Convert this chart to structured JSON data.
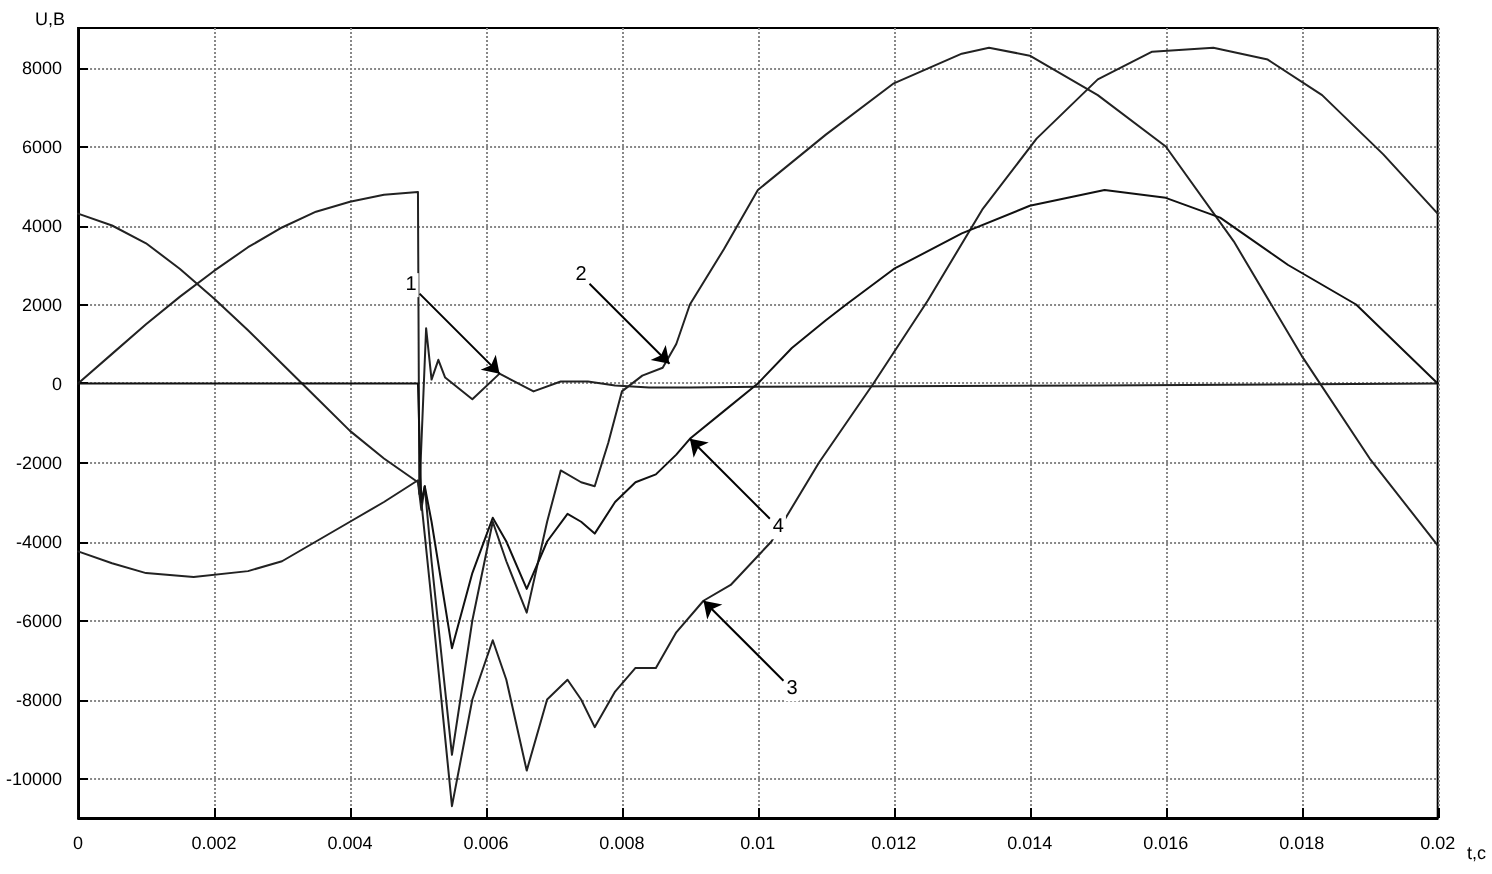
{
  "chart_data": {
    "type": "line",
    "xlabel": "t,c",
    "ylabel": "U,B",
    "xlim": [
      0,
      0.02
    ],
    "ylim": [
      -11000,
      9000
    ],
    "xticks": [
      0,
      0.002,
      0.004,
      0.006,
      0.008,
      0.01,
      0.012,
      0.014,
      0.016,
      0.018,
      0.02
    ],
    "yticks": [
      -10000,
      -8000,
      -6000,
      -4000,
      -2000,
      0,
      2000,
      4000,
      6000,
      8000
    ],
    "grid": true,
    "marker": "none",
    "line_style": "solid",
    "series": [
      {
        "color": "#222222",
        "x": [
          0,
          0.0005,
          0.001,
          0.0015,
          0.002,
          0.0025,
          0.003,
          0.0035,
          0.004,
          0.0045,
          0.005,
          0.00502,
          0.00512,
          0.0052,
          0.0053,
          0.0054,
          0.0058,
          0.0062,
          0.0067,
          0.0071,
          0.0075,
          0.0079,
          0.0084,
          0.009,
          0.01,
          0.015,
          0.02
        ],
        "values": [
          0,
          750,
          1500,
          2200,
          2850,
          3450,
          3950,
          4350,
          4600,
          4780,
          4850,
          -2800,
          1400,
          100,
          600,
          150,
          -400,
          250,
          -200,
          50,
          50,
          -50,
          -100,
          -100,
          -80,
          -50,
          0
        ]
      },
      {
        "color": "#222222",
        "x": [
          0,
          0.0005,
          0.001,
          0.0015,
          0.002,
          0.0025,
          0.003,
          0.0035,
          0.004,
          0.0045,
          0.005,
          0.00505,
          0.0051,
          0.0052,
          0.0055,
          0.0058,
          0.0061,
          0.0063,
          0.0066,
          0.0069,
          0.0071,
          0.0074,
          0.0076,
          0.0078,
          0.008,
          0.0083,
          0.0086,
          0.0088,
          0.009,
          0.0095,
          0.01,
          0.011,
          0.012,
          0.013,
          0.0134,
          0.014,
          0.015,
          0.016,
          0.017,
          0.018,
          0.019,
          0.02
        ],
        "values": [
          4300,
          4000,
          3550,
          2900,
          2150,
          1350,
          500,
          -350,
          -1200,
          -1900,
          -2500,
          -3200,
          -2600,
          -4500,
          -9400,
          -6000,
          -3500,
          -4500,
          -5800,
          -3500,
          -2200,
          -2500,
          -2600,
          -1500,
          -200,
          200,
          400,
          1000,
          2000,
          3400,
          4900,
          6300,
          7600,
          8350,
          8500,
          8300,
          7300,
          6000,
          3600,
          700,
          -1900,
          -4100
        ]
      },
      {
        "color": "#222222",
        "x": [
          0,
          0.0005,
          0.001,
          0.0017,
          0.0025,
          0.003,
          0.0035,
          0.004,
          0.0045,
          0.005,
          0.00505,
          0.0052,
          0.0055,
          0.0058,
          0.0061,
          0.0063,
          0.0066,
          0.0069,
          0.0072,
          0.0074,
          0.0076,
          0.0079,
          0.0082,
          0.0085,
          0.0088,
          0.0092,
          0.0096,
          0.0102,
          0.0109,
          0.0117,
          0.0125,
          0.0133,
          0.0141,
          0.015,
          0.0158,
          0.0167,
          0.0175,
          0.0183,
          0.0192,
          0.02
        ],
        "values": [
          -4250,
          -4550,
          -4800,
          -4900,
          -4750,
          -4500,
          -4000,
          -3500,
          -3000,
          -2450,
          -3000,
          -5500,
          -10700,
          -8000,
          -6500,
          -7500,
          -9800,
          -8000,
          -7500,
          -8000,
          -8700,
          -7800,
          -7200,
          -7200,
          -6300,
          -5500,
          -5100,
          -4000,
          -2000,
          0,
          2100,
          4400,
          6200,
          7700,
          8400,
          8500,
          8200,
          7300,
          5800,
          4300
        ]
      },
      {
        "color": "#111111",
        "x": [
          0,
          0.005,
          0.00505,
          0.0051,
          0.0052,
          0.0055,
          0.0058,
          0.0061,
          0.0063,
          0.0066,
          0.0069,
          0.0072,
          0.0074,
          0.0076,
          0.0079,
          0.0082,
          0.0085,
          0.0088,
          0.009,
          0.0095,
          0.01,
          0.0105,
          0.011,
          0.0113,
          0.012,
          0.013,
          0.014,
          0.0151,
          0.016,
          0.0168,
          0.0178,
          0.0188,
          0.02
        ],
        "values": [
          0,
          0,
          -3000,
          -2600,
          -3500,
          -6700,
          -4800,
          -3400,
          -4000,
          -5200,
          -4000,
          -3300,
          -3500,
          -3800,
          -3000,
          -2500,
          -2300,
          -1800,
          -1400,
          -700,
          0,
          900,
          1600,
          2000,
          2900,
          3800,
          4500,
          4900,
          4700,
          4200,
          3000,
          2000,
          0
        ]
      }
    ],
    "annotations": [
      {
        "text": "1",
        "x": 0.0062,
        "y": 250
      },
      {
        "text": "2",
        "x": 0.0087,
        "y": 500
      },
      {
        "text": "3",
        "x": 0.0092,
        "y": -5500
      },
      {
        "text": "4",
        "x": 0.009,
        "y": -1400
      }
    ]
  }
}
